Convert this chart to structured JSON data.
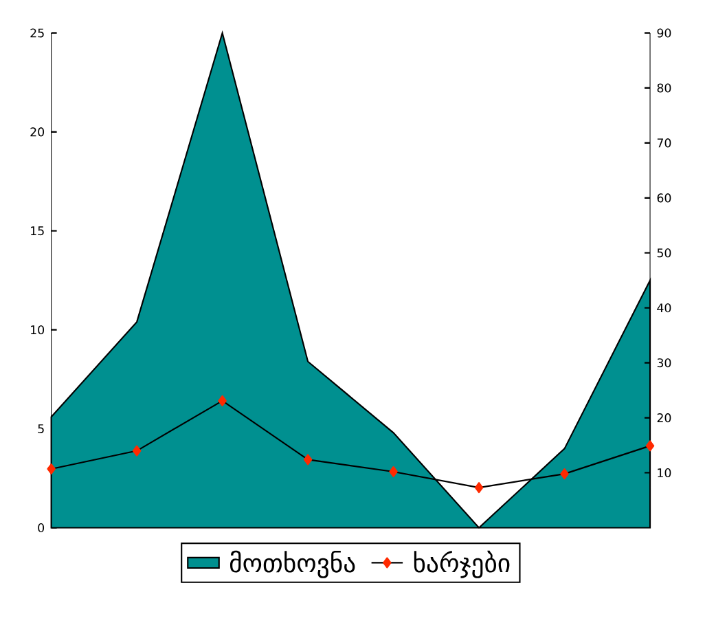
{
  "chart_data": {
    "type": "area",
    "categories": [
      null,
      null,
      null,
      null,
      null,
      null,
      null,
      null
    ],
    "series": [
      {
        "name": "მოთხოვნა",
        "color": "#009090",
        "values": [
          5.6,
          10.4,
          25,
          8.4,
          4.8,
          0,
          4.0,
          12.5
        ]
      },
      {
        "name": "ხარჯები",
        "type": "line",
        "axis": "y2",
        "color": "#ff2a00",
        "marker": "diamond",
        "values": [
          10.7,
          14,
          23.1,
          12.4,
          10.2,
          7.3,
          9.8,
          14.9
        ]
      }
    ],
    "ylim": [
      0,
      25
    ],
    "yticks": [
      0,
      5,
      10,
      15,
      20,
      25
    ],
    "y2lim": [
      0,
      90
    ],
    "y2ticks": [
      10,
      20,
      30,
      40,
      50,
      60,
      70,
      80,
      90
    ],
    "legend": "bottom",
    "grid": false
  }
}
